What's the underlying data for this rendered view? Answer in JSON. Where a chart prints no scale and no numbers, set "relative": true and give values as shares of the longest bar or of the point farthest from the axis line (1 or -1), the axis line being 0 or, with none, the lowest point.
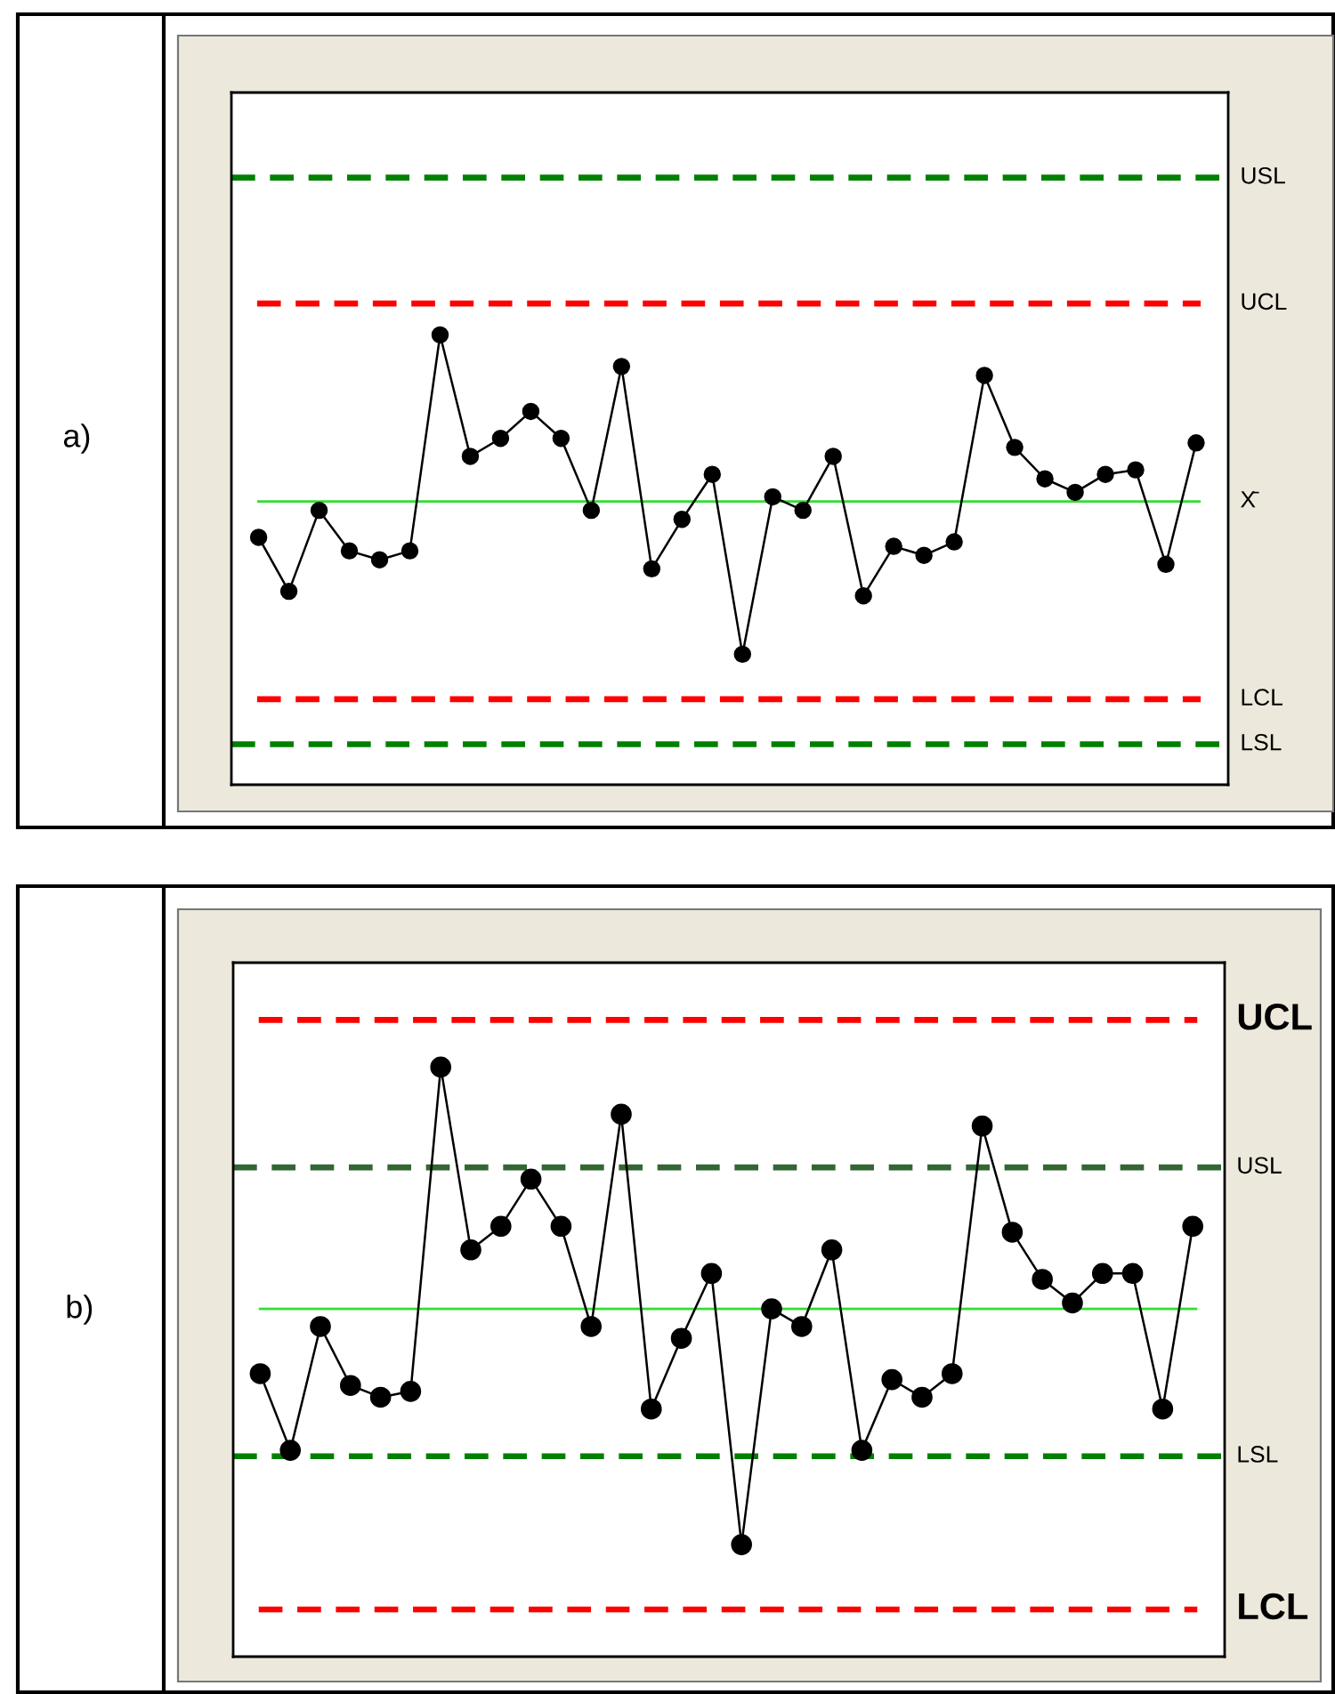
{
  "chart_data": [
    {
      "type": "line",
      "title": "a)",
      "relative": true,
      "marker": "circle",
      "tick_labels": false,
      "categories": [
        null,
        null,
        null,
        null,
        null,
        null,
        null,
        null,
        null,
        null,
        null,
        null,
        null,
        null,
        null,
        null,
        null,
        null,
        null,
        null,
        null,
        null,
        null,
        null,
        null,
        null,
        null,
        null,
        null,
        null,
        null,
        null
      ],
      "series": [
        {
          "color": "#000000",
          "values": [
            0.55,
            0.43,
            0.61,
            0.52,
            0.5,
            0.52,
            1,
            0.73,
            0.77,
            0.83,
            0.77,
            0.61,
            0.93,
            0.48,
            0.59,
            0.69,
            0.29,
            0.64,
            0.61,
            0.73,
            0.42,
            0.53,
            0.51,
            0.54,
            0.91,
            0.75,
            0.68,
            0.65,
            0.69,
            0.7,
            0.49,
            0.76
          ]
        }
      ],
      "ref_lines": [
        {
          "axis": "y",
          "value": 1.35,
          "label": "USL",
          "color": "#008000",
          "line_style": "dashed"
        },
        {
          "axis": "y",
          "value": 1.07,
          "label": "UCL",
          "color": "#ff0000",
          "line_style": "dashed"
        },
        {
          "axis": "y",
          "value": 0.63,
          "label": "X̄",
          "color": "#33dd33",
          "line_style": "solid"
        },
        {
          "axis": "y",
          "value": 0.19,
          "label": "LCL",
          "color": "#ff0000",
          "line_style": "dashed"
        },
        {
          "axis": "y",
          "value": 0.09,
          "label": "LSL",
          "color": "#008000",
          "line_style": "dashed"
        }
      ]
    },
    {
      "type": "line",
      "title": "b)",
      "relative": true,
      "marker": "circle",
      "tick_labels": false,
      "categories": [
        null,
        null,
        null,
        null,
        null,
        null,
        null,
        null,
        null,
        null,
        null,
        null,
        null,
        null,
        null,
        null,
        null,
        null,
        null,
        null,
        null,
        null,
        null,
        null,
        null,
        null,
        null,
        null,
        null,
        null,
        null,
        null
      ],
      "series": [
        {
          "color": "#000000",
          "values": [
            0.48,
            0.35,
            0.56,
            0.46,
            0.44,
            0.45,
            1,
            0.69,
            0.73,
            0.81,
            0.73,
            0.56,
            0.92,
            0.42,
            0.54,
            0.65,
            0.19,
            0.59,
            0.56,
            0.69,
            0.35,
            0.47,
            0.44,
            0.48,
            0.9,
            0.72,
            0.64,
            0.6,
            0.65,
            0.65,
            0.42,
            0.73
          ]
        }
      ],
      "ref_lines": [
        {
          "axis": "y",
          "value": 1.08,
          "label": "UCL",
          "color": "#ff0000",
          "line_style": "dashed"
        },
        {
          "axis": "y",
          "value": 0.83,
          "label": "USL",
          "color": "#336633",
          "line_style": "dashed"
        },
        {
          "axis": "y",
          "value": 0.59,
          "label": null,
          "color": "#33dd33",
          "line_style": "solid"
        },
        {
          "axis": "y",
          "value": 0.34,
          "label": "LSL",
          "color": "#008000",
          "line_style": "dashed"
        },
        {
          "axis": "y",
          "value": 0.08,
          "label": "LCL",
          "color": "#ff0000",
          "line_style": "dashed"
        }
      ]
    }
  ]
}
